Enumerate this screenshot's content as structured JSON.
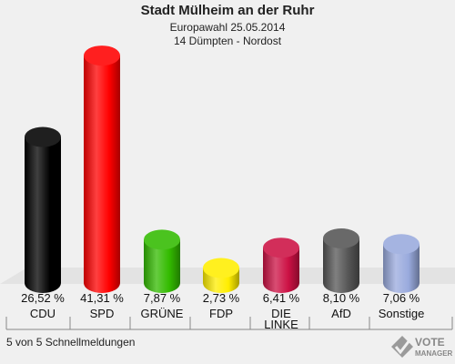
{
  "header": {
    "title": "Stadt Mülheim an der Ruhr",
    "subtitle": "Europawahl 25.05.2014",
    "district": "14 Dümpten - Nordost"
  },
  "footer": {
    "status": "5 von 5 Schnellmeldungen"
  },
  "logo": {
    "line1": "VOTE",
    "line2": "MANAGER",
    "icon": "ballot-check-icon"
  },
  "chart_data": {
    "type": "bar",
    "title": "",
    "xlabel": "",
    "ylabel": "",
    "ylim": [
      0,
      45
    ],
    "grid": false,
    "legend": "none",
    "categories": [
      "CDU",
      "SPD",
      "GRÜNE",
      "FDP",
      "DIE LINKE",
      "AfD",
      "Sonstige"
    ],
    "values": [
      26.52,
      41.31,
      7.87,
      2.73,
      6.41,
      8.1,
      7.06
    ],
    "value_labels": [
      "26,52 %",
      "41,31 %",
      "7,87 %",
      "2,73 %",
      "6,41 %",
      "8,10 %",
      "7,06 %"
    ],
    "colors": [
      "#000000",
      "#ff0000",
      "#33bb00",
      "#ffee00",
      "#cc1144",
      "#555555",
      "#99aadd"
    ]
  }
}
